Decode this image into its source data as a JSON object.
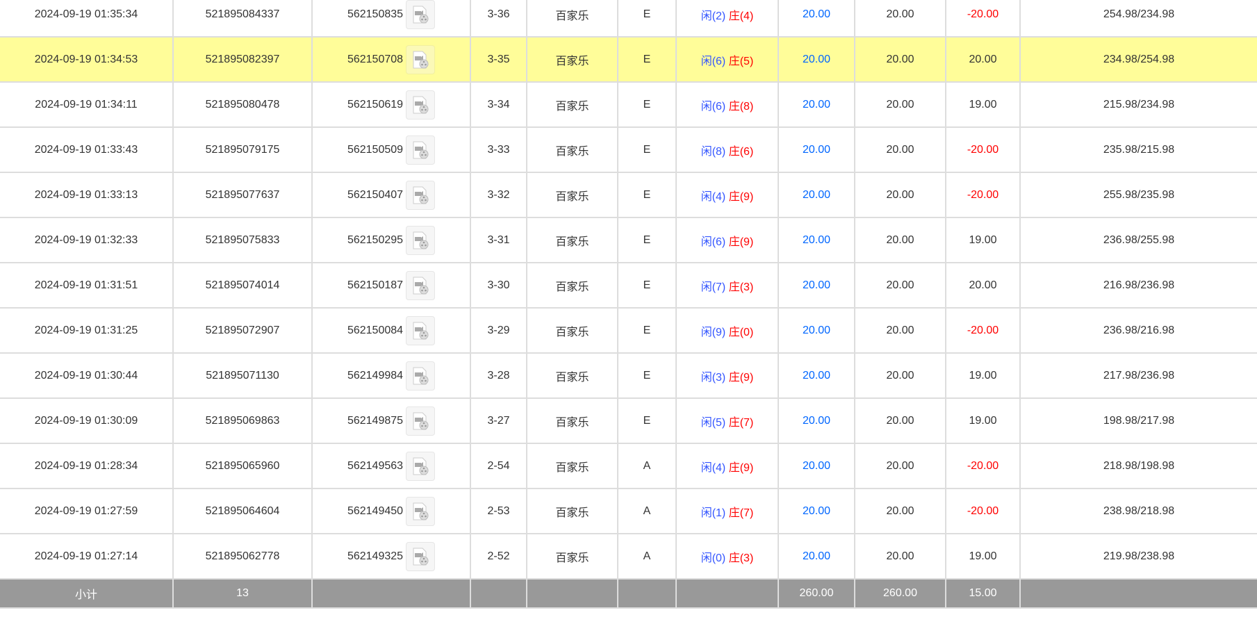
{
  "rows": [
    {
      "time": "2024-09-19 01:35:34",
      "order_no": "521895084337",
      "round_no": "562150835",
      "shoe": "3-36",
      "game": "百家乐",
      "table": "E",
      "result_xian": "闲(2)",
      "result_zhuang": "庄(4)",
      "bet": "20.00",
      "valid": "20.00",
      "winloss": "-20.00",
      "balance": "254.98/234.98",
      "highlight": false
    },
    {
      "time": "2024-09-19 01:34:53",
      "order_no": "521895082397",
      "round_no": "562150708",
      "shoe": "3-35",
      "game": "百家乐",
      "table": "E",
      "result_xian": "闲(6)",
      "result_zhuang": "庄(5)",
      "bet": "20.00",
      "valid": "20.00",
      "winloss": "20.00",
      "balance": "234.98/254.98",
      "highlight": true
    },
    {
      "time": "2024-09-19 01:34:11",
      "order_no": "521895080478",
      "round_no": "562150619",
      "shoe": "3-34",
      "game": "百家乐",
      "table": "E",
      "result_xian": "闲(6)",
      "result_zhuang": "庄(8)",
      "bet": "20.00",
      "valid": "20.00",
      "winloss": "19.00",
      "balance": "215.98/234.98",
      "highlight": false
    },
    {
      "time": "2024-09-19 01:33:43",
      "order_no": "521895079175",
      "round_no": "562150509",
      "shoe": "3-33",
      "game": "百家乐",
      "table": "E",
      "result_xian": "闲(8)",
      "result_zhuang": "庄(6)",
      "bet": "20.00",
      "valid": "20.00",
      "winloss": "-20.00",
      "balance": "235.98/215.98",
      "highlight": false
    },
    {
      "time": "2024-09-19 01:33:13",
      "order_no": "521895077637",
      "round_no": "562150407",
      "shoe": "3-32",
      "game": "百家乐",
      "table": "E",
      "result_xian": "闲(4)",
      "result_zhuang": "庄(9)",
      "bet": "20.00",
      "valid": "20.00",
      "winloss": "-20.00",
      "balance": "255.98/235.98",
      "highlight": false
    },
    {
      "time": "2024-09-19 01:32:33",
      "order_no": "521895075833",
      "round_no": "562150295",
      "shoe": "3-31",
      "game": "百家乐",
      "table": "E",
      "result_xian": "闲(6)",
      "result_zhuang": "庄(9)",
      "bet": "20.00",
      "valid": "20.00",
      "winloss": "19.00",
      "balance": "236.98/255.98",
      "highlight": false
    },
    {
      "time": "2024-09-19 01:31:51",
      "order_no": "521895074014",
      "round_no": "562150187",
      "shoe": "3-30",
      "game": "百家乐",
      "table": "E",
      "result_xian": "闲(7)",
      "result_zhuang": "庄(3)",
      "bet": "20.00",
      "valid": "20.00",
      "winloss": "20.00",
      "balance": "216.98/236.98",
      "highlight": false
    },
    {
      "time": "2024-09-19 01:31:25",
      "order_no": "521895072907",
      "round_no": "562150084",
      "shoe": "3-29",
      "game": "百家乐",
      "table": "E",
      "result_xian": "闲(9)",
      "result_zhuang": "庄(0)",
      "bet": "20.00",
      "valid": "20.00",
      "winloss": "-20.00",
      "balance": "236.98/216.98",
      "highlight": false
    },
    {
      "time": "2024-09-19 01:30:44",
      "order_no": "521895071130",
      "round_no": "562149984",
      "shoe": "3-28",
      "game": "百家乐",
      "table": "E",
      "result_xian": "闲(3)",
      "result_zhuang": "庄(9)",
      "bet": "20.00",
      "valid": "20.00",
      "winloss": "19.00",
      "balance": "217.98/236.98",
      "highlight": false
    },
    {
      "time": "2024-09-19 01:30:09",
      "order_no": "521895069863",
      "round_no": "562149875",
      "shoe": "3-27",
      "game": "百家乐",
      "table": "E",
      "result_xian": "闲(5)",
      "result_zhuang": "庄(7)",
      "bet": "20.00",
      "valid": "20.00",
      "winloss": "19.00",
      "balance": "198.98/217.98",
      "highlight": false
    },
    {
      "time": "2024-09-19 01:28:34",
      "order_no": "521895065960",
      "round_no": "562149563",
      "shoe": "2-54",
      "game": "百家乐",
      "table": "A",
      "result_xian": "闲(4)",
      "result_zhuang": "庄(9)",
      "bet": "20.00",
      "valid": "20.00",
      "winloss": "-20.00",
      "balance": "218.98/198.98",
      "highlight": false
    },
    {
      "time": "2024-09-19 01:27:59",
      "order_no": "521895064604",
      "round_no": "562149450",
      "shoe": "2-53",
      "game": "百家乐",
      "table": "A",
      "result_xian": "闲(1)",
      "result_zhuang": "庄(7)",
      "bet": "20.00",
      "valid": "20.00",
      "winloss": "-20.00",
      "balance": "238.98/218.98",
      "highlight": false
    },
    {
      "time": "2024-09-19 01:27:14",
      "order_no": "521895062778",
      "round_no": "562149325",
      "shoe": "2-52",
      "game": "百家乐",
      "table": "A",
      "result_xian": "闲(0)",
      "result_zhuang": "庄(3)",
      "bet": "20.00",
      "valid": "20.00",
      "winloss": "19.00",
      "balance": "219.98/238.98",
      "highlight": false
    }
  ],
  "subtotal": {
    "label": "小计",
    "count": "13",
    "bet": "260.00",
    "valid": "260.00",
    "winloss": "15.00"
  },
  "icons": {
    "replay": "video-replay-icon"
  },
  "colors": {
    "highlight_row": "#fffd99",
    "bet_blue": "#0066ff",
    "loss_red": "#ff0000",
    "xian_blue": "#3355ff",
    "zhuang_red": "#ff0000",
    "subtotal_bg": "#999999"
  }
}
